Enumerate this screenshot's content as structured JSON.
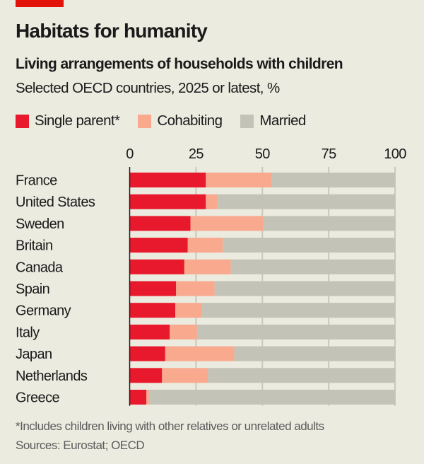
{
  "chart_data": {
    "type": "bar",
    "orientation": "horizontal",
    "stacked": true,
    "title": "Habitats for humanity",
    "subtitle": "Living arrangements of households with children",
    "subsubtitle": "Selected OECD countries, 2025 or latest, %",
    "categories": [
      "France",
      "United States",
      "Sweden",
      "Britain",
      "Canada",
      "Spain",
      "Germany",
      "Italy",
      "Japan",
      "Netherlands",
      "Greece"
    ],
    "series": [
      {
        "name": "Single parent*",
        "color": "#e8192c",
        "values": [
          28.7,
          28.7,
          22.9,
          21.9,
          20.6,
          17.5,
          17.2,
          15.1,
          13.4,
          12.2,
          6.3
        ]
      },
      {
        "name": "Cohabiting",
        "color": "#f9a98e",
        "values": [
          24.7,
          4.4,
          27.3,
          13.2,
          17.5,
          14.5,
          10.1,
          10.3,
          26.0,
          17.3,
          1.0
        ]
      },
      {
        "name": "Married",
        "color": "#c4c3b8",
        "values": [
          46.6,
          66.9,
          49.8,
          64.9,
          61.9,
          68.0,
          72.7,
          74.6,
          60.6,
          70.5,
          92.7
        ]
      }
    ],
    "xlim": [
      0,
      100
    ],
    "xticks": [
      "0",
      "25",
      "50",
      "75",
      "100"
    ],
    "grid": true,
    "legend_position": "top-left",
    "footnote": "*Includes children living with other relatives or unrelated adults",
    "source": "Sources: Eurostat; OECD"
  }
}
